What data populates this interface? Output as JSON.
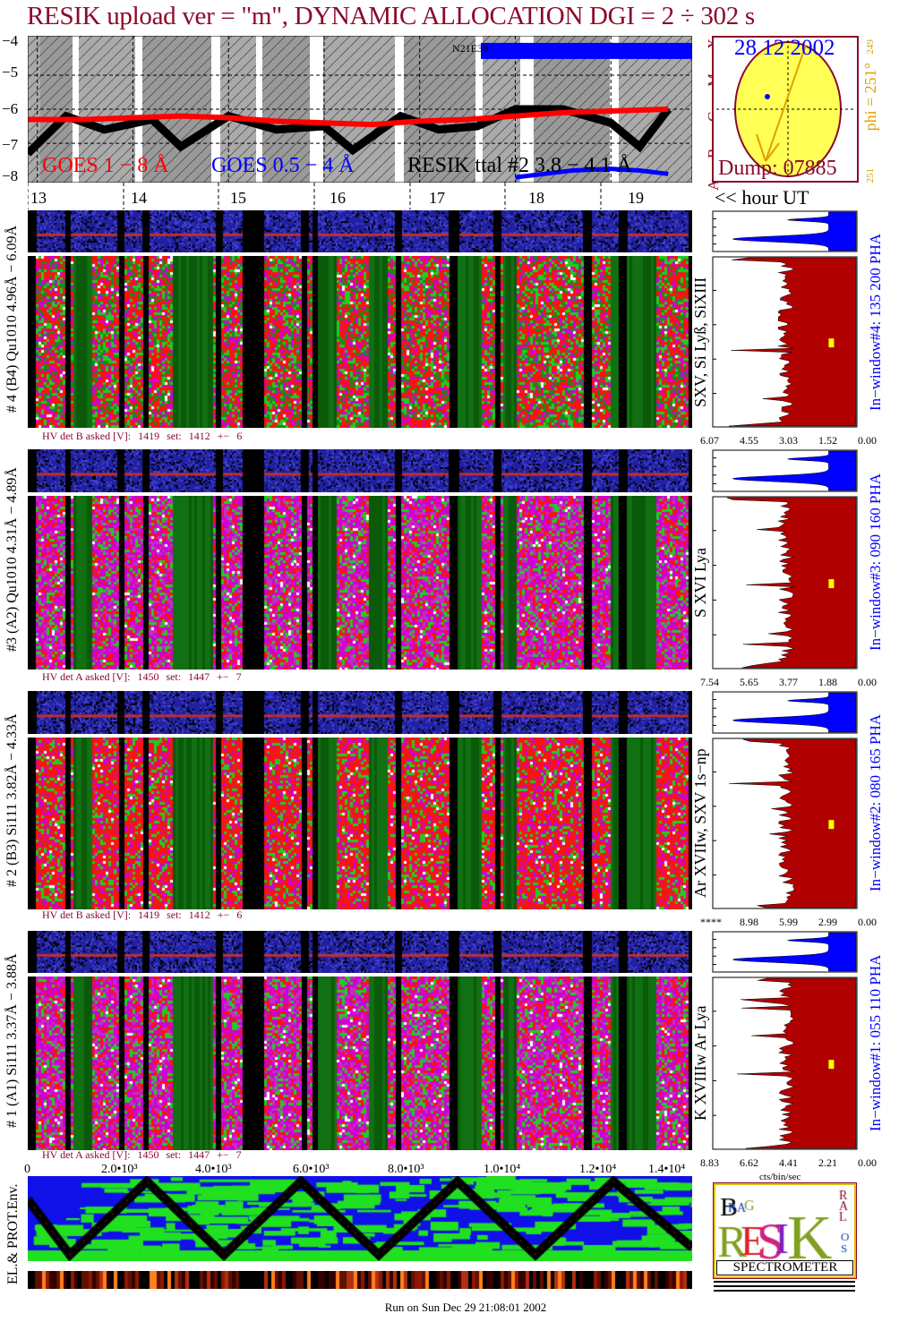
{
  "title": "RESIK upload ver = \"m\", DYNAMIC ALLOCATION  DGI =   2 ÷ 302 s",
  "goes_panel": {
    "y_ticks": [
      "−4",
      "−5",
      "−6",
      "−7",
      "−8"
    ],
    "class_letters": [
      "X",
      "M",
      "C",
      "B",
      "A"
    ],
    "legend": {
      "goes_long": "GOES 1 − 8 Å",
      "goes_short": "GOES 0.5 − 4 Å",
      "resik": "RESIK  ttal #2  3.8 − 4.1 Å"
    },
    "region_label": "N21E30",
    "colors": {
      "goes_long": "#ff0000",
      "goes_short": "#0000ff",
      "resik": "#000000"
    }
  },
  "sun_panel": {
    "date": "28 12 2002",
    "dump": "Dump: 07885",
    "phi": "phi = 251°",
    "phi_top": "249",
    "phi_bottom": "251"
  },
  "hour_axis": {
    "labels": [
      "13",
      "14",
      "15",
      "16",
      "17",
      "18",
      "19"
    ],
    "unit": "<< hour UT"
  },
  "detectors": [
    {
      "left_label": "# 4 (B4) Qu1010 4.96Å − 6.09Å",
      "lines": "SXV, Si Lyß, SiXIII",
      "window": "In−window#4:  135 200 PHA",
      "hv": {
        "label": "HV det B asked [V]:",
        "asked": "1419",
        "set_label": "set:",
        "set": "1412",
        "pm": "+−",
        "dev": "6"
      },
      "ticks": [
        "6.07",
        "4.55",
        "3.03",
        "1.52",
        "0.00"
      ]
    },
    {
      "left_label": "#3 (A2) Qu1010  4.31Å − 4.89Å",
      "lines": "S XVI Lya",
      "window": "In−window#3:  090 160 PHA",
      "hv": {
        "label": "HV det A asked [V]:",
        "asked": "1450",
        "set_label": "set:",
        "set": "1447",
        "pm": "+−",
        "dev": "7"
      },
      "ticks": [
        "7.54",
        "5.65",
        "3.77",
        "1.88",
        "0.00"
      ]
    },
    {
      "left_label": "# 2 (B3) Si111  3.82Å − 4.33Å",
      "lines": "Ar XVIIw,  SXV 1s−np",
      "window": "In−window#2:  080 165 PHA",
      "hv": {
        "label": "HV det B asked [V]:",
        "asked": "1419",
        "set_label": "set:",
        "set": "1412",
        "pm": "+−",
        "dev": "6"
      },
      "ticks": [
        "****",
        "8.98",
        "5.99",
        "2.99",
        "0.00"
      ]
    },
    {
      "left_label": "# 1 (A1) Si111  3.37Å − 3.88Å",
      "lines": "K XVIIIw  Ar Lya",
      "window": "In−window#1:  055 110 PHA",
      "hv": {
        "label": "HV det A asked [V]:",
        "asked": "1450",
        "set_label": "set:",
        "set": "1447",
        "pm": "+−",
        "dev": "7"
      },
      "ticks": [
        "8.83",
        "6.62",
        "4.41",
        "2.21",
        "0.00"
      ]
    }
  ],
  "hist_unit": "cts/bin/sec",
  "sample_axis": {
    "labels": [
      "0",
      "2.0•10³",
      "4.0•10³",
      "6.0•10³",
      "8.0•10³",
      "1.0•10⁴",
      "1.2•10⁴",
      "1.4•10⁴"
    ]
  },
  "env_panel": {
    "label": "EL.& PROT.Env."
  },
  "logo": {
    "text": "RESIK",
    "letters": [
      "B",
      "R",
      "A",
      "G",
      "R",
      "E",
      "S",
      "I",
      "K",
      "S",
      "O",
      "L",
      "A",
      "R"
    ],
    "subtitle": "SPECTROMETER"
  },
  "footer": "Run on Sun Dec 29 21:08:01 2002",
  "chart_data": {
    "type": "line",
    "title": "RESIK upload ver = \"m\", DYNAMIC ALLOCATION  DGI =   2 ÷ 302 s",
    "xlabel": "<< hour UT",
    "x_ticks": [
      "13",
      "14",
      "15",
      "16",
      "17",
      "18",
      "19"
    ],
    "ylim": [
      -8,
      -4
    ],
    "grid": true,
    "series": [
      {
        "name": "GOES 1 − 8 Å",
        "x": [
          12.9,
          13.5,
          14,
          14.5,
          15,
          15.5,
          16,
          16.5,
          17,
          17.5,
          18,
          18.5,
          19,
          19.6
        ],
        "y": [
          -6.3,
          -6.3,
          -6.25,
          -6.2,
          -6.25,
          -6.35,
          -6.4,
          -6.45,
          -6.35,
          -6.3,
          -6.2,
          -6.1,
          -6.05,
          -6.0
        ]
      },
      {
        "name": "GOES 0.5 − 4 Å",
        "x": [
          18.0,
          18.3,
          18.6,
          19.0,
          19.3,
          19.6
        ],
        "y": [
          -8.0,
          -7.9,
          -7.8,
          -7.75,
          -7.8,
          -7.9
        ]
      },
      {
        "name": "RESIK  ttal #2  3.8 − 4.1 Å",
        "x": [
          12.9,
          13.3,
          13.7,
          14.2,
          14.5,
          15,
          15.5,
          16,
          16.3,
          16.8,
          17.2,
          17.6,
          18,
          18.5,
          19,
          19.3,
          19.6
        ],
        "y": [
          -7.3,
          -6.2,
          -6.6,
          -6.3,
          -7.1,
          -6.2,
          -6.6,
          -6.5,
          -7.2,
          -6.2,
          -6.6,
          -6.5,
          -6.0,
          -6.0,
          -6.4,
          -7.1,
          -6.0
        ]
      }
    ]
  }
}
